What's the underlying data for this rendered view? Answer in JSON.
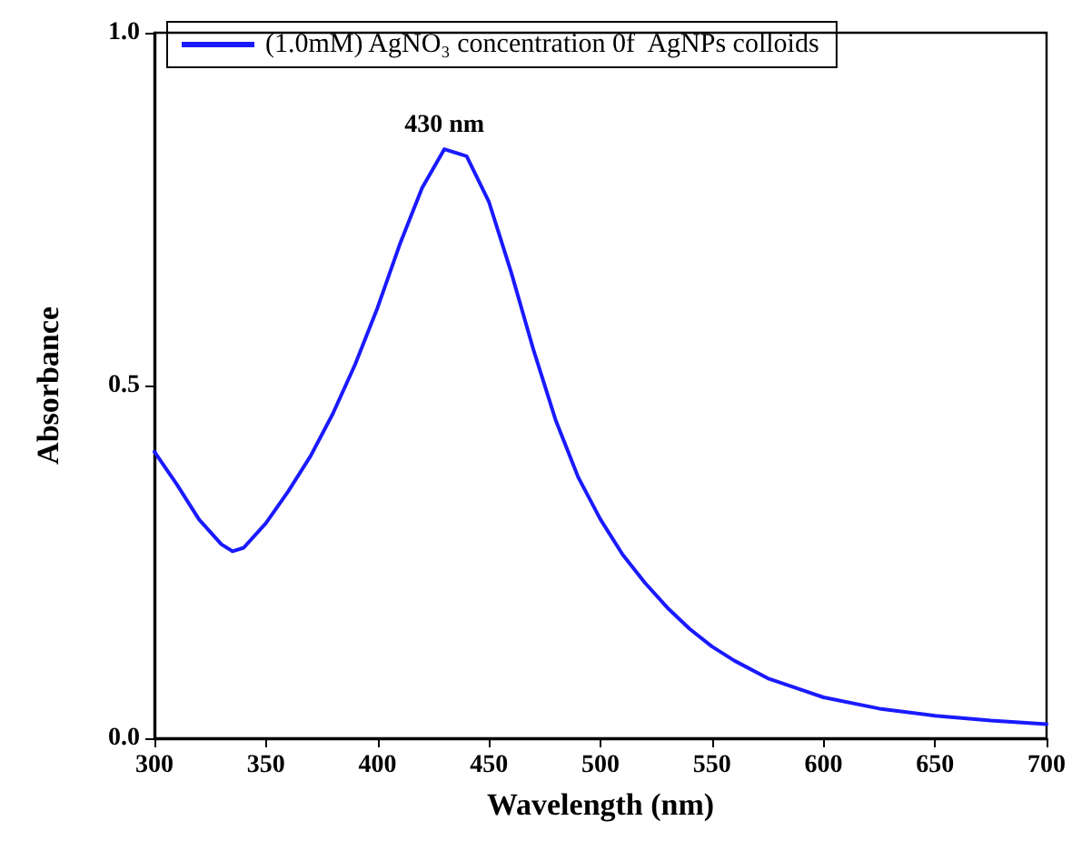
{
  "chart_data": {
    "type": "line",
    "xlabel": "Wavelength (nm)",
    "ylabel": "Absorbance",
    "x": [
      300,
      310,
      320,
      330,
      335,
      340,
      350,
      360,
      370,
      380,
      390,
      400,
      410,
      420,
      430,
      440,
      450,
      460,
      470,
      480,
      490,
      500,
      510,
      520,
      530,
      540,
      550,
      560,
      575,
      600,
      625,
      650,
      675,
      700
    ],
    "series": [
      {
        "name": "(1.0mM) AgNO₃ concentration 0f  AgNPs colloids",
        "color": "#1a1aff",
        "values": [
          0.406,
          0.36,
          0.31,
          0.275,
          0.265,
          0.27,
          0.305,
          0.35,
          0.4,
          0.46,
          0.53,
          0.61,
          0.7,
          0.78,
          0.835,
          0.825,
          0.76,
          0.66,
          0.55,
          0.45,
          0.37,
          0.31,
          0.26,
          0.22,
          0.185,
          0.155,
          0.13,
          0.11,
          0.085,
          0.058,
          0.042,
          0.032,
          0.025,
          0.02
        ]
      }
    ],
    "annotations": [
      {
        "text": "430 nm",
        "x": 430,
        "y": 0.835
      }
    ],
    "xlim": [
      300,
      700
    ],
    "xticks": [
      300,
      350,
      400,
      450,
      500,
      550,
      600,
      650,
      700
    ],
    "ylim": [
      0,
      1
    ],
    "yticks": [
      {
        "value": 0,
        "label": "0.0"
      },
      {
        "value": 0.5,
        "label": "0.5"
      },
      {
        "value": 1,
        "label": "1.0"
      }
    ],
    "grid": false,
    "legend": "top",
    "marker": "none",
    "line_style": "solid"
  }
}
